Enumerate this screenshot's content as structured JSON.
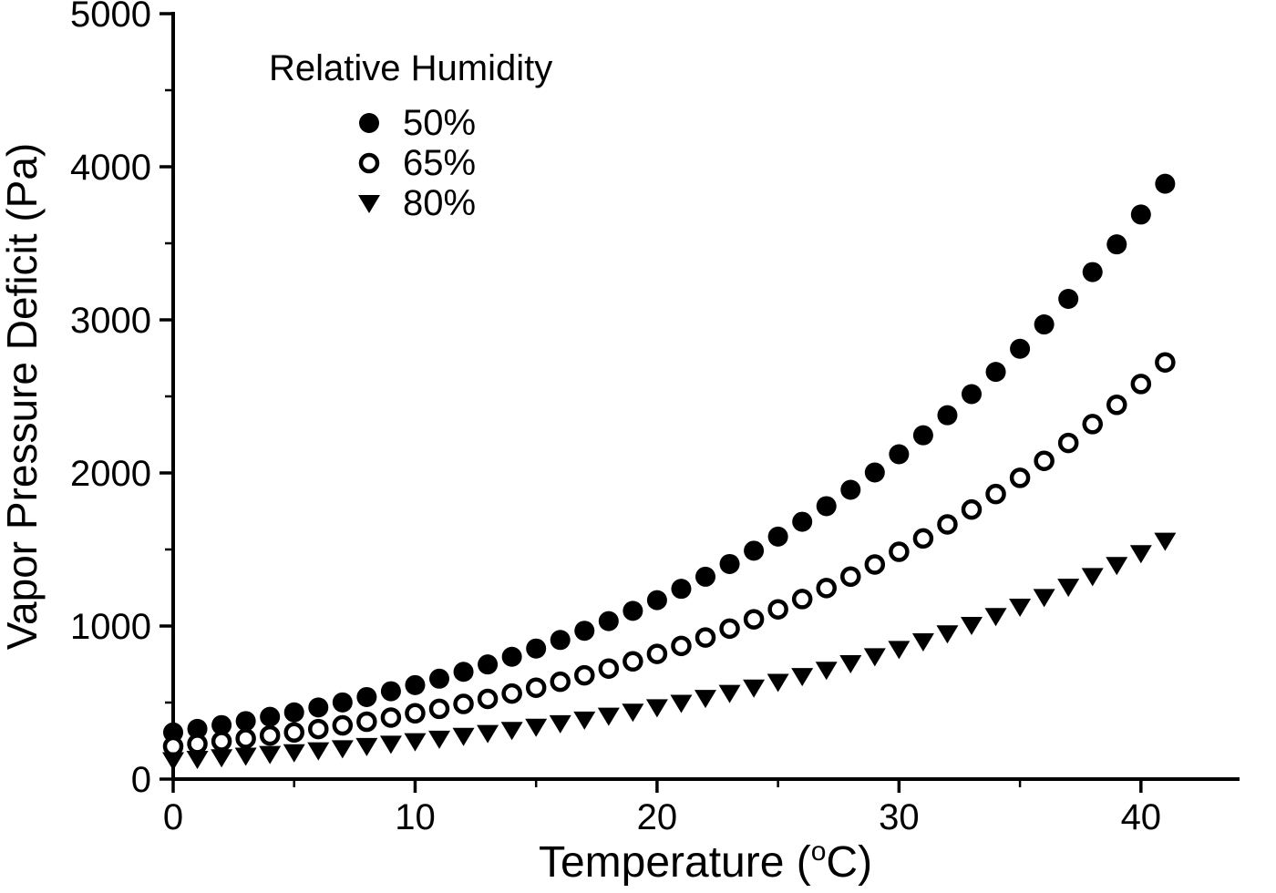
{
  "figure": {
    "kind": "scientific-scatter-plot",
    "background": "#ffffff",
    "foreground": "#000000"
  },
  "chart_data": {
    "type": "scatter",
    "title": "",
    "xlabel": "Temperature (°C)",
    "ylabel": "Vapor Pressure Deficit (Pa)",
    "xlim": [
      0,
      44
    ],
    "ylim": [
      0,
      5000
    ],
    "x_major_ticks": [
      0,
      10,
      20,
      30,
      40
    ],
    "x_minor_ticks": [
      5,
      15,
      25,
      35
    ],
    "y_major_ticks": [
      0,
      1000,
      2000,
      3000,
      4000,
      5000
    ],
    "y_minor_ticks": [
      500,
      1500,
      2500,
      3500,
      4500
    ],
    "grid": false,
    "legend": {
      "title": "Relative Humidity",
      "position": "upper-left-inside",
      "items": [
        {
          "label": "50%",
          "marker": "filled-circle"
        },
        {
          "label": "65%",
          "marker": "open-circle"
        },
        {
          "label": "80%",
          "marker": "filled-triangle-down"
        }
      ]
    },
    "x": [
      0,
      1,
      2,
      3,
      4,
      5,
      6,
      7,
      8,
      9,
      10,
      11,
      12,
      13,
      14,
      15,
      16,
      17,
      18,
      19,
      20,
      21,
      22,
      23,
      24,
      25,
      26,
      27,
      28,
      29,
      30,
      31,
      32,
      33,
      34,
      35,
      36,
      37,
      38,
      39,
      40,
      41
    ],
    "series": [
      {
        "name": "50%",
        "marker": "filled-circle",
        "color": "#000000",
        "values": [
          305,
          328,
          353,
          379,
          407,
          436,
          468,
          501,
          536,
          574,
          614,
          656,
          701,
          749,
          799,
          853,
          909,
          969,
          1032,
          1099,
          1169,
          1243,
          1322,
          1405,
          1492,
          1584,
          1681,
          1783,
          1890,
          2003,
          2122,
          2246,
          2377,
          2515,
          2660,
          2811,
          2970,
          3137,
          3312,
          3493,
          3688,
          3889
        ]
      },
      {
        "name": "65%",
        "marker": "open-circle",
        "color": "#000000",
        "values": [
          214,
          230,
          247,
          265,
          285,
          305,
          327,
          351,
          375,
          402,
          430,
          459,
          491,
          524,
          559,
          597,
          636,
          678,
          722,
          769,
          818,
          870,
          925,
          983,
          1044,
          1109,
          1176,
          1248,
          1323,
          1402,
          1485,
          1572,
          1664,
          1761,
          1862,
          1968,
          2079,
          2196,
          2319,
          2445,
          2581,
          2722
        ]
      },
      {
        "name": "80%",
        "marker": "filled-triangle-down",
        "color": "#000000",
        "values": [
          122,
          131,
          141,
          152,
          163,
          174,
          187,
          200,
          215,
          230,
          246,
          263,
          281,
          300,
          320,
          341,
          364,
          388,
          413,
          439,
          468,
          497,
          529,
          562,
          597,
          634,
          672,
          713,
          756,
          801,
          849,
          899,
          951,
          1006,
          1064,
          1125,
          1188,
          1255,
          1325,
          1397,
          1475,
          1556
        ]
      }
    ]
  }
}
